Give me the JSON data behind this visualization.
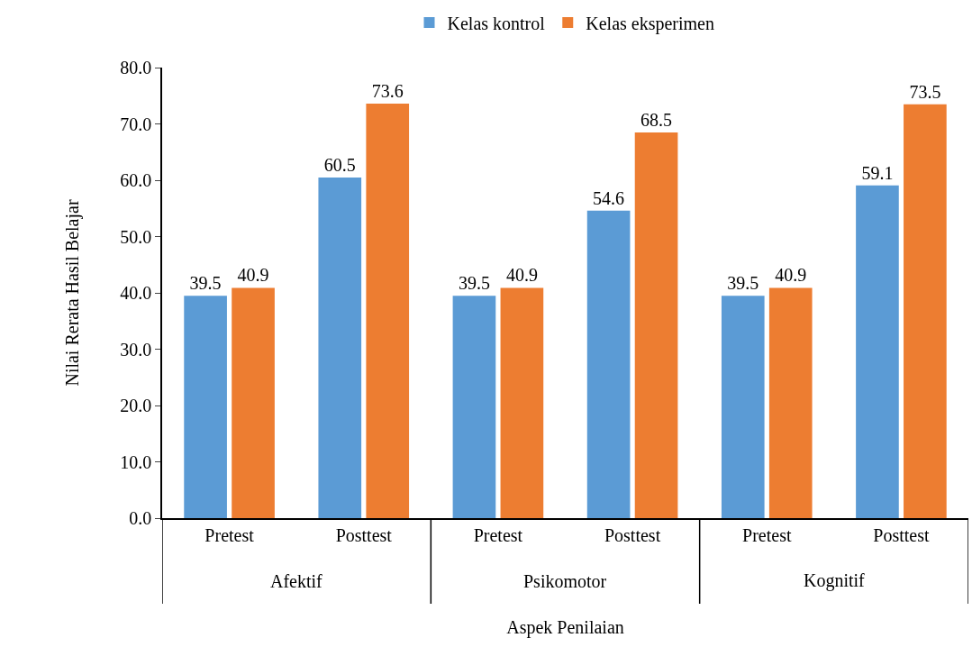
{
  "chart_data": {
    "type": "bar",
    "categories": [
      "Pretest",
      "Posttest",
      "Pretest",
      "Posttest",
      "Pretest",
      "Posttest"
    ],
    "series": [
      {
        "name": "Kelas kontrol",
        "color": "#5b9bd5",
        "values": [
          39.5,
          60.5,
          39.5,
          54.6,
          39.5,
          59.1
        ]
      },
      {
        "name": "Kelas eksperimen",
        "color": "#ed7d31",
        "values": [
          40.9,
          73.6,
          40.9,
          68.5,
          40.9,
          73.5
        ]
      }
    ],
    "xlabel": "Aspek Penilaian",
    "ylabel": "Nilai Rerata Hasil Belajar",
    "annotations": [
      "Afektif",
      "Psikomotor",
      "Kognitif"
    ],
    "ylim": [
      0,
      80
    ],
    "yticks": [
      {
        "value": 0,
        "label": "0.0"
      },
      {
        "value": 10,
        "label": "10.0"
      },
      {
        "value": 20,
        "label": "20.0"
      },
      {
        "value": 30,
        "label": "30.0"
      },
      {
        "value": 40,
        "label": "40.0"
      },
      {
        "value": 50,
        "label": "50.0"
      },
      {
        "value": 60,
        "label": "60.0"
      },
      {
        "value": 70,
        "label": "70.0"
      },
      {
        "value": 80,
        "label": "80.0"
      }
    ],
    "data_labels": true,
    "legend": "top"
  }
}
